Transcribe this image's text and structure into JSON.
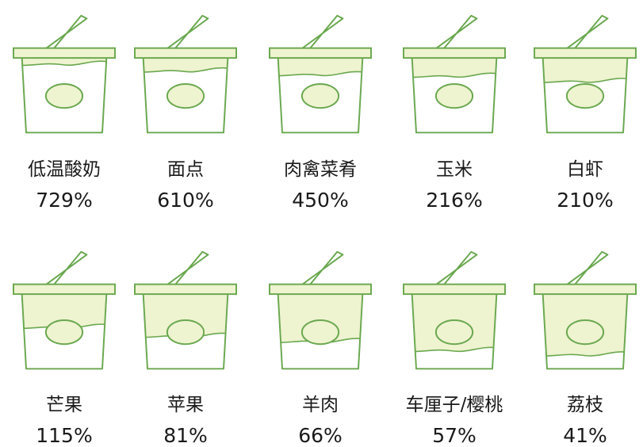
{
  "chart_data": {
    "type": "pictograph",
    "title": "",
    "unit": "%",
    "categories": [
      "低温酸奶",
      "面点",
      "肉禽菜肴",
      "玉米",
      "白虾",
      "芒果",
      "苹果",
      "羊肉",
      "车厘子/樱桃",
      "荔枝"
    ],
    "values": [
      729,
      610,
      450,
      216,
      210,
      115,
      81,
      66,
      57,
      41
    ],
    "labels": [
      "729%",
      "610%",
      "450%",
      "216%",
      "210%",
      "115%",
      "81%",
      "66%",
      "57%",
      "41%"
    ],
    "fill_levels": [
      0.07,
      0.16,
      0.21,
      0.23,
      0.3,
      0.43,
      0.55,
      0.62,
      0.74,
      0.8
    ],
    "layout": "two rows of five cups",
    "colors": {
      "outline": "#6aa84f",
      "fill": "#eef3d0",
      "cup_body": "#ffffff",
      "text": "#1a1a1a"
    }
  }
}
